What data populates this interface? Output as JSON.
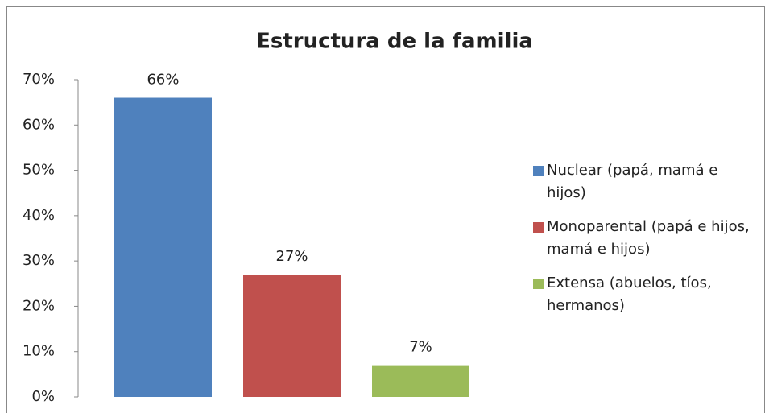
{
  "chart_data": {
    "type": "bar",
    "title": "Estructura de la familia",
    "categories": [
      null
    ],
    "series": [
      {
        "name": "Nuclear (papá, mamá e hijos)",
        "color": "#4f81bd",
        "values": [
          66
        ],
        "value_labels": [
          "66%"
        ]
      },
      {
        "name": "Monoparental (papá e hijos, mamá e hijos)",
        "color": "#c0504d",
        "values": [
          27
        ],
        "value_labels": [
          "27%"
        ]
      },
      {
        "name": "Extensa (abuelos, tíos, hermanos)",
        "color": "#9bbb59",
        "values": [
          7
        ],
        "value_labels": [
          "7%"
        ]
      }
    ],
    "ylim": [
      0,
      70
    ],
    "yticks": [
      {
        "value": 0,
        "label": "0%"
      },
      {
        "value": 10,
        "label": "10%"
      },
      {
        "value": 20,
        "label": "20%"
      },
      {
        "value": 30,
        "label": "30%"
      },
      {
        "value": 40,
        "label": "40%"
      },
      {
        "value": 50,
        "label": "50%"
      },
      {
        "value": 60,
        "label": "60%"
      },
      {
        "value": 70,
        "label": "70%"
      }
    ],
    "legend": "right",
    "grid": false
  }
}
